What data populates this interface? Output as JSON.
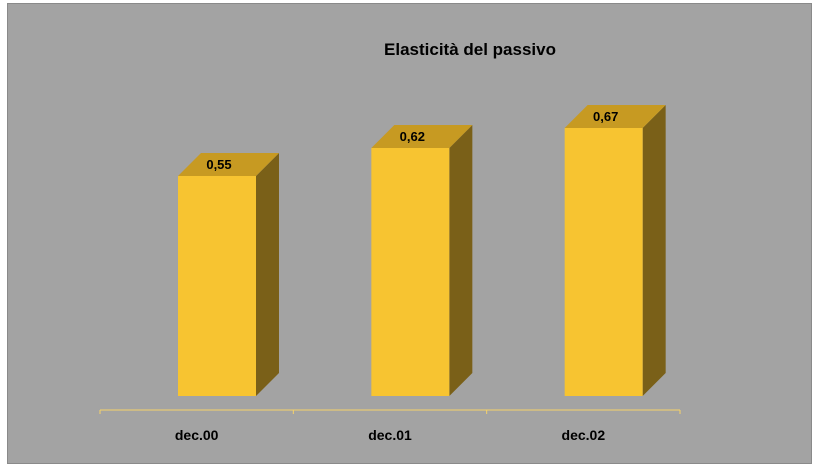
{
  "chart_data": {
    "type": "bar",
    "title": "Elasticità del passivo",
    "categories": [
      "dec.00",
      "dec.01",
      "dec.02"
    ],
    "values": [
      0.55,
      0.62,
      0.67
    ],
    "value_labels": [
      "0,55",
      "0,62",
      "0,67"
    ],
    "xlabel": "",
    "ylabel": "",
    "ylim": [
      0,
      0.8
    ],
    "grid": false,
    "legend": "none",
    "three_d": true
  },
  "colors": {
    "background": "#a3a3a3",
    "bar_front": "#f7c431",
    "bar_top": "#c79a22",
    "bar_side": "#7a6018",
    "axis_line": "#f7d36a"
  }
}
